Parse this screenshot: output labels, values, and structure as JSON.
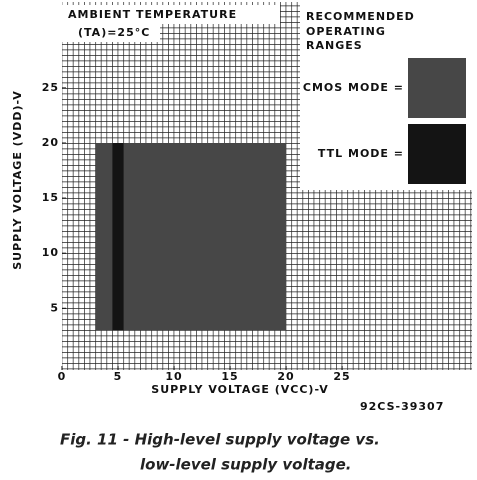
{
  "chart_data": {
    "type": "region",
    "annotations": [
      "AMBIENT TEMPERATURE",
      "(TA)=25°C"
    ],
    "legend_title": [
      "RECOMMENDED",
      "OPERATING",
      "RANGES"
    ],
    "x_label": "SUPPLY VOLTAGE (VCC)-V",
    "y_label": "SUPPLY VOLTAGE (VDD)-V",
    "code": "92CS-39307",
    "caption": [
      "Fig. 11 - High-level supply voltage vs.",
      "low-level supply voltage."
    ],
    "xlim": [
      0,
      36.6
    ],
    "ylim": [
      -0.6,
      32.8
    ],
    "xticks": [
      0,
      5,
      10,
      15,
      20,
      25
    ],
    "yticks": [
      5,
      10,
      15,
      20,
      25
    ],
    "grid": true,
    "series": [
      {
        "name": "CMOS MODE =",
        "color": "#474747",
        "x": [
          3,
          20
        ],
        "y": [
          3,
          20
        ]
      },
      {
        "name": "TTL MODE =",
        "color": "#141414",
        "x": [
          4.5,
          5.5
        ],
        "y": [
          3,
          20
        ]
      }
    ]
  }
}
